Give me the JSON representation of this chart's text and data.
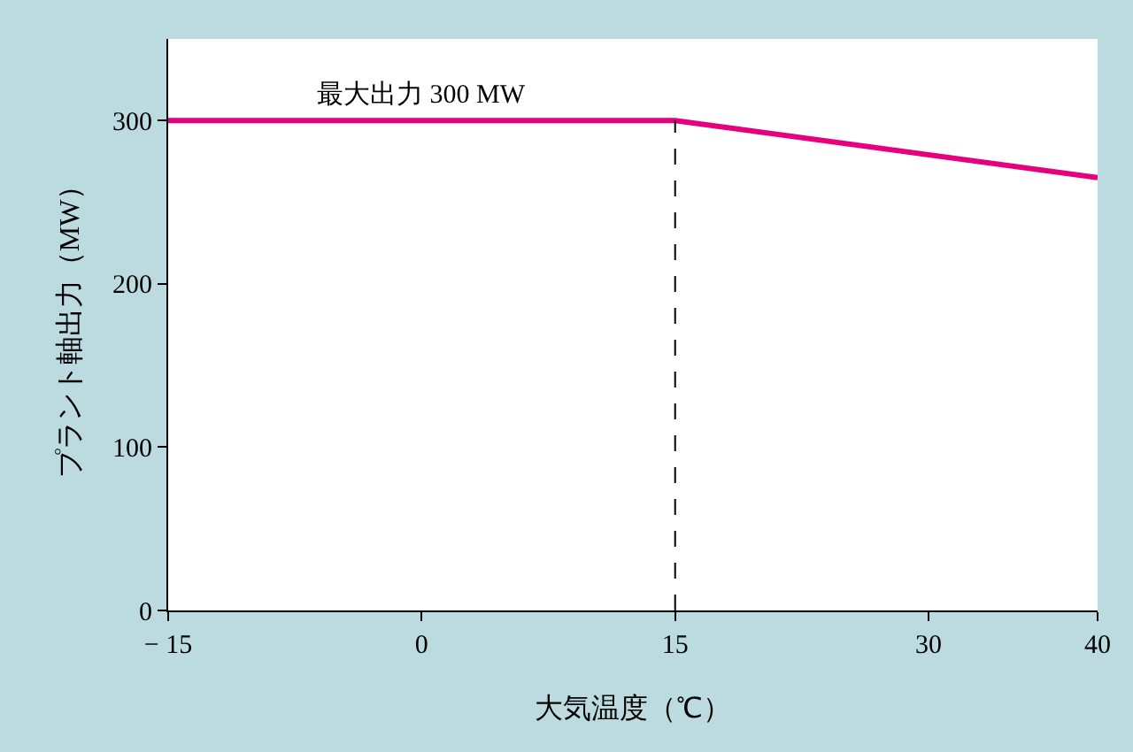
{
  "chart_data": {
    "type": "line",
    "xlabel": "大気温度（℃）",
    "ylabel": "プラント軸出力（MW）",
    "x": [
      -15,
      15,
      40
    ],
    "series": [
      {
        "color": "#e6007e",
        "values": [
          300,
          300,
          265
        ]
      }
    ],
    "xlim": [
      -15,
      40
    ],
    "xticks": [
      {
        "value": -15,
        "label": "− 15"
      },
      0,
      15,
      30,
      40
    ],
    "ylim": [
      0,
      350
    ],
    "yticks": [
      0,
      100,
      200,
      300
    ],
    "ref_lines": [
      {
        "axis": "x",
        "value": 15,
        "color": "#000000",
        "line_style": "dashed"
      }
    ],
    "annotations": [
      {
        "text": "最大出力 300 MW",
        "x": 0,
        "y": 300
      }
    ],
    "legend": false,
    "marker": "none",
    "line_style": "solid"
  }
}
